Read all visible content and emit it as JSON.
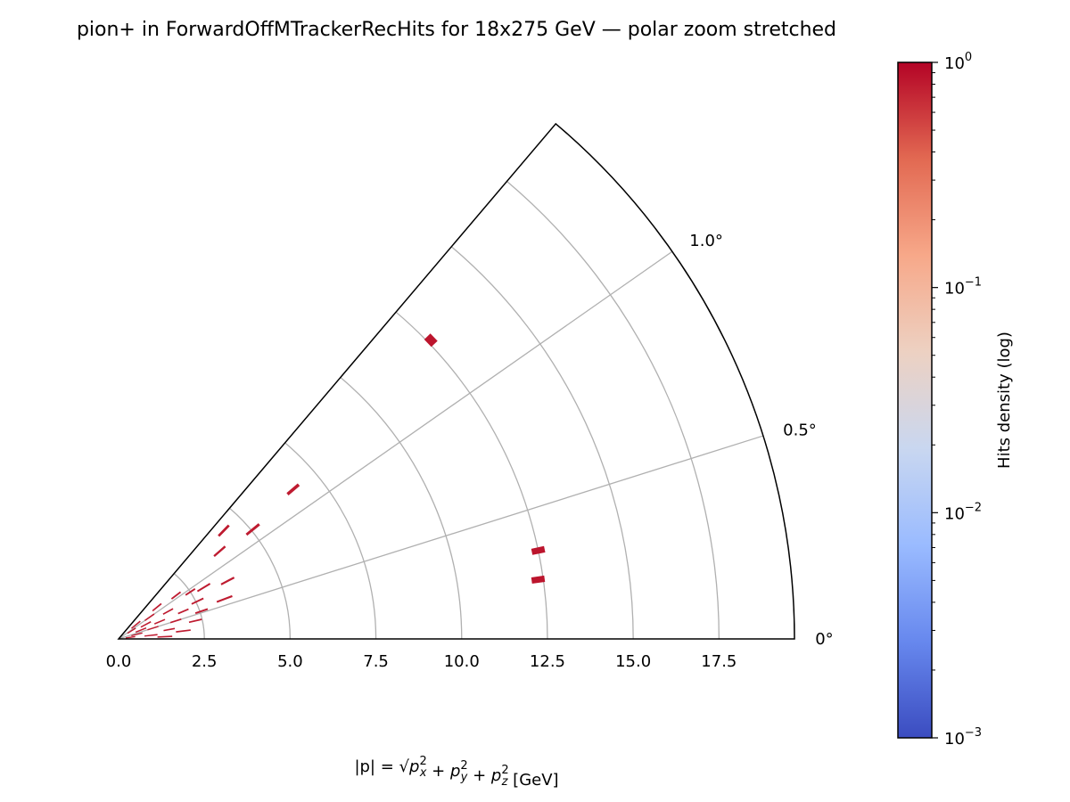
{
  "chart_data": {
    "type": "heatmap",
    "projection": "polar-wedge",
    "title": "pion+ in ForwardOffMTrackerRecHits for 18x275 GeV — polar zoom stretched",
    "xlabel_parts": {
      "lhs": "|p| = √",
      "px": "p",
      "py": "p",
      "pz": "p",
      "sub_x": "x",
      "sub_y": "y",
      "sub_z": "z",
      "sup": "2",
      "plus": "+",
      "unit": "[GeV]"
    },
    "r_axis": {
      "min": 0,
      "max": 19.7,
      "ticks": [
        0.0,
        2.5,
        5.0,
        7.5,
        10.0,
        12.5,
        15.0,
        17.5
      ],
      "tick_labels": [
        "0.0",
        "2.5",
        "5.0",
        "7.5",
        "10.0",
        "12.5",
        "15.0",
        "17.5"
      ]
    },
    "theta_axis": {
      "min_deg": 0,
      "max_deg": 1.42,
      "ticks_deg": [
        0,
        0.5,
        1.0
      ],
      "tick_labels": [
        "0°",
        "0.5°",
        "1.0°"
      ]
    },
    "grid": true,
    "colorbar": {
      "label": "Hits density (log)",
      "scale": "log",
      "colormap": "coolwarm",
      "min": 0.001,
      "max": 1,
      "ticks": [
        {
          "value": 1,
          "base": "10",
          "exp": "0"
        },
        {
          "value": 0.1,
          "base": "10",
          "exp": "−1"
        },
        {
          "value": 0.01,
          "base": "10",
          "exp": "−2"
        },
        {
          "value": 0.001,
          "base": "10",
          "exp": "−3"
        }
      ],
      "colors": [
        "#3b4cc0",
        "#6788ee",
        "#9abbff",
        "#c9d7f0",
        "#edd1c2",
        "#f7a889",
        "#e26952",
        "#b40426"
      ]
    },
    "points": [
      {
        "r": 12.35,
        "theta_deg": 0.23,
        "density": 0.85,
        "dr": 0.35,
        "dtheta_deg": 0.02
      },
      {
        "r": 12.5,
        "theta_deg": 0.34,
        "density": 0.85,
        "dr": 0.35,
        "dtheta_deg": 0.02
      },
      {
        "r": 12.6,
        "theta_deg": 1.25,
        "density": 0.85,
        "dr": 0.22,
        "dtheta_deg": 0.035
      },
      {
        "r": 6.7,
        "theta_deg": 1.16,
        "density": 0.8,
        "dr": 0.4,
        "dtheta_deg": 0.015
      },
      {
        "r": 5.05,
        "theta_deg": 1.12,
        "density": 0.8,
        "dr": 0.45,
        "dtheta_deg": 0.015
      },
      {
        "r": 4.4,
        "theta_deg": 1.31,
        "density": 0.8,
        "dr": 0.4,
        "dtheta_deg": 0.015
      },
      {
        "r": 3.9,
        "theta_deg": 1.17,
        "density": 0.8,
        "dr": 0.4,
        "dtheta_deg": 0.013
      },
      {
        "r": 3.6,
        "theta_deg": 0.8,
        "density": 0.8,
        "dr": 0.4,
        "dtheta_deg": 0.012
      },
      {
        "r": 3.3,
        "theta_deg": 0.59,
        "density": 0.8,
        "dr": 0.45,
        "dtheta_deg": 0.012
      },
      {
        "r": 2.9,
        "theta_deg": 0.89,
        "density": 0.8,
        "dr": 0.4,
        "dtheta_deg": 0.012
      },
      {
        "r": 2.55,
        "theta_deg": 0.73,
        "density": 0.8,
        "dr": 0.35,
        "dtheta_deg": 0.012
      },
      {
        "r": 2.55,
        "theta_deg": 0.53,
        "density": 0.8,
        "dr": 0.35,
        "dtheta_deg": 0.012
      },
      {
        "r": 2.5,
        "theta_deg": 0.95,
        "density": 0.8,
        "dr": 0.3,
        "dtheta_deg": 0.012
      },
      {
        "r": 2.3,
        "theta_deg": 0.38,
        "density": 0.8,
        "dr": 0.35,
        "dtheta_deg": 0.01
      },
      {
        "r": 2.1,
        "theta_deg": 1.06,
        "density": 0.8,
        "dr": 0.3,
        "dtheta_deg": 0.012
      },
      {
        "r": 2.05,
        "theta_deg": 0.66,
        "density": 0.8,
        "dr": 0.3,
        "dtheta_deg": 0.012
      },
      {
        "r": 1.9,
        "theta_deg": 0.2,
        "density": 0.8,
        "dr": 0.4,
        "dtheta_deg": 0.01
      },
      {
        "r": 1.75,
        "theta_deg": 0.5,
        "density": 0.8,
        "dr": 0.3,
        "dtheta_deg": 0.012
      },
      {
        "r": 1.65,
        "theta_deg": 0.83,
        "density": 0.8,
        "dr": 0.3,
        "dtheta_deg": 0.012
      },
      {
        "r": 1.5,
        "theta_deg": 0.3,
        "density": 0.8,
        "dr": 0.3,
        "dtheta_deg": 0.012
      },
      {
        "r": 1.45,
        "theta_deg": 1.13,
        "density": 0.8,
        "dr": 0.3,
        "dtheta_deg": 0.015
      },
      {
        "r": 1.35,
        "theta_deg": 0.08,
        "density": 0.8,
        "dr": 0.4,
        "dtheta_deg": 0.01
      },
      {
        "r": 1.3,
        "theta_deg": 0.65,
        "density": 0.8,
        "dr": 0.3,
        "dtheta_deg": 0.012
      },
      {
        "r": 1.1,
        "theta_deg": 1.0,
        "density": 0.8,
        "dr": 0.3,
        "dtheta_deg": 0.015
      },
      {
        "r": 1.05,
        "theta_deg": 0.5,
        "density": 0.8,
        "dr": 0.3,
        "dtheta_deg": 0.012
      },
      {
        "r": 0.95,
        "theta_deg": 0.18,
        "density": 0.8,
        "dr": 0.35,
        "dtheta_deg": 0.012
      },
      {
        "r": 0.9,
        "theta_deg": 0.8,
        "density": 0.8,
        "dr": 0.3,
        "dtheta_deg": 0.015
      },
      {
        "r": 0.7,
        "theta_deg": 0.62,
        "density": 0.8,
        "dr": 0.3,
        "dtheta_deg": 0.015
      },
      {
        "r": 0.65,
        "theta_deg": 1.12,
        "density": 0.8,
        "dr": 0.3,
        "dtheta_deg": 0.02
      },
      {
        "r": 0.55,
        "theta_deg": 0.4,
        "density": 0.8,
        "dr": 0.3,
        "dtheta_deg": 0.015
      },
      {
        "r": 0.45,
        "theta_deg": 0.92,
        "density": 0.8,
        "dr": 0.25,
        "dtheta_deg": 0.02
      },
      {
        "r": 0.35,
        "theta_deg": 0.22,
        "density": 0.8,
        "dr": 0.25,
        "dtheta_deg": 0.015
      }
    ]
  }
}
